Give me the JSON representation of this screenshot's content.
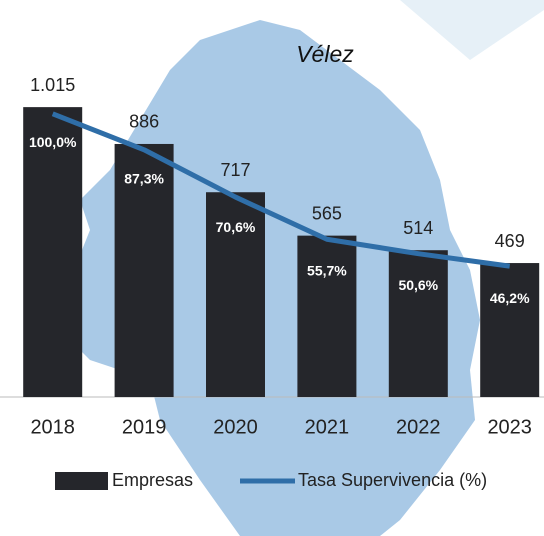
{
  "chart_data": {
    "type": "bar",
    "title": "Vélez",
    "categories": [
      "2018",
      "2019",
      "2020",
      "2021",
      "2022",
      "2023"
    ],
    "series": [
      {
        "name": "Empresas",
        "color": "#25262b",
        "values": [
          1015,
          886,
          717,
          565,
          514,
          469
        ],
        "value_labels": [
          "1.015",
          "886",
          "717",
          "565",
          "514",
          "469"
        ]
      },
      {
        "name": "Tasa Supervivencia (%)",
        "color": "#2f6ea8",
        "axis": "y2",
        "values": [
          100.0,
          87.3,
          70.6,
          55.7,
          50.6,
          46.2
        ],
        "value_labels": [
          "100,0%",
          "87,3%",
          "70,6%",
          "55,7%",
          "50,6%",
          "46,2%"
        ]
      }
    ],
    "ylim": [
      0,
      1180
    ],
    "y2lim": [
      0,
      119
    ]
  }
}
